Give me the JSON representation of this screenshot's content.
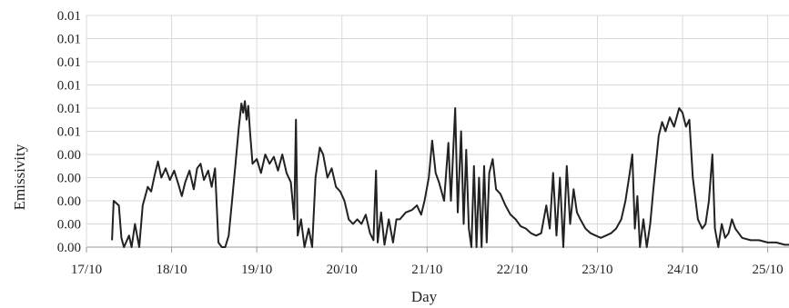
{
  "chart_data": {
    "type": "line",
    "title": "",
    "xlabel": "Day",
    "ylabel": "Emissivity",
    "x_tick_labels": [
      "17/10",
      "18/10",
      "19/10",
      "20/10",
      "21/10",
      "22/10",
      "23/10",
      "24/10",
      "25/10"
    ],
    "x_tick_values": [
      17,
      18,
      19,
      20,
      21,
      22,
      23,
      24,
      25
    ],
    "xlim": [
      17,
      25.25
    ],
    "y_tick_labels": [
      "0.00",
      "0.00",
      "0.00",
      "0.00",
      "0.00",
      "0.01",
      "0.01",
      "0.01",
      "0.01",
      "0.01",
      "0.01"
    ],
    "y_tick_values": [
      0,
      0.001,
      0.002,
      0.003,
      0.004,
      0.005,
      0.006,
      0.007,
      0.008,
      0.009,
      0.01
    ],
    "ylim": [
      0,
      0.01
    ],
    "grid": true,
    "legend": "none",
    "colors": {
      "line": "#222222",
      "grid": "#d9d9d9",
      "axis": "#9a9a9a"
    },
    "series": [
      {
        "values": [
          [
            17.3,
            0.0003
          ],
          [
            17.32,
            0.002
          ],
          [
            17.38,
            0.0018
          ],
          [
            17.41,
            0.0004
          ],
          [
            17.44,
            0.0
          ],
          [
            17.5,
            0.0005
          ],
          [
            17.53,
            0.0
          ],
          [
            17.57,
            0.001
          ],
          [
            17.62,
            0.0
          ],
          [
            17.66,
            0.0018
          ],
          [
            17.72,
            0.0026
          ],
          [
            17.76,
            0.0024
          ],
          [
            17.8,
            0.0031
          ],
          [
            17.84,
            0.0037
          ],
          [
            17.88,
            0.003
          ],
          [
            17.93,
            0.0034
          ],
          [
            17.98,
            0.0029
          ],
          [
            18.03,
            0.0033
          ],
          [
            18.08,
            0.0027
          ],
          [
            18.12,
            0.0022
          ],
          [
            18.16,
            0.0028
          ],
          [
            18.21,
            0.0033
          ],
          [
            18.26,
            0.0025
          ],
          [
            18.3,
            0.0034
          ],
          [
            18.34,
            0.0036
          ],
          [
            18.38,
            0.0029
          ],
          [
            18.43,
            0.0033
          ],
          [
            18.47,
            0.0026
          ],
          [
            18.51,
            0.0034
          ],
          [
            18.55,
            0.0002
          ],
          [
            18.59,
            0.0
          ],
          [
            18.63,
            0.0
          ],
          [
            18.67,
            0.0005
          ],
          [
            18.71,
            0.002
          ],
          [
            18.75,
            0.0036
          ],
          [
            18.79,
            0.0052
          ],
          [
            18.82,
            0.0062
          ],
          [
            18.84,
            0.0058
          ],
          [
            18.86,
            0.0063
          ],
          [
            18.88,
            0.0055
          ],
          [
            18.9,
            0.0061
          ],
          [
            18.92,
            0.005
          ],
          [
            18.95,
            0.0036
          ],
          [
            19.0,
            0.0038
          ],
          [
            19.05,
            0.0032
          ],
          [
            19.1,
            0.004
          ],
          [
            19.15,
            0.0036
          ],
          [
            19.2,
            0.0039
          ],
          [
            19.25,
            0.0033
          ],
          [
            19.3,
            0.004
          ],
          [
            19.35,
            0.0032
          ],
          [
            19.4,
            0.0028
          ],
          [
            19.44,
            0.0012
          ],
          [
            19.46,
            0.0055
          ],
          [
            19.48,
            0.0005
          ],
          [
            19.52,
            0.0012
          ],
          [
            19.56,
            0.0
          ],
          [
            19.61,
            0.0008
          ],
          [
            19.65,
            0.0
          ],
          [
            19.69,
            0.003
          ],
          [
            19.74,
            0.0043
          ],
          [
            19.78,
            0.004
          ],
          [
            19.83,
            0.003
          ],
          [
            19.88,
            0.0034
          ],
          [
            19.93,
            0.0026
          ],
          [
            19.98,
            0.0024
          ],
          [
            20.03,
            0.002
          ],
          [
            20.08,
            0.0012
          ],
          [
            20.13,
            0.001
          ],
          [
            20.18,
            0.0012
          ],
          [
            20.23,
            0.001
          ],
          [
            20.28,
            0.0014
          ],
          [
            20.33,
            0.0006
          ],
          [
            20.37,
            0.0003
          ],
          [
            20.4,
            0.0033
          ],
          [
            20.42,
            0.0002
          ],
          [
            20.46,
            0.0015
          ],
          [
            20.5,
            0.0001
          ],
          [
            20.55,
            0.0012
          ],
          [
            20.6,
            0.0002
          ],
          [
            20.64,
            0.0012
          ],
          [
            20.68,
            0.0012
          ],
          [
            20.75,
            0.0015
          ],
          [
            20.82,
            0.0016
          ],
          [
            20.88,
            0.0018
          ],
          [
            20.93,
            0.0014
          ],
          [
            20.97,
            0.002
          ],
          [
            21.02,
            0.003
          ],
          [
            21.06,
            0.0046
          ],
          [
            21.1,
            0.0032
          ],
          [
            21.14,
            0.0028
          ],
          [
            21.2,
            0.002
          ],
          [
            21.25,
            0.0045
          ],
          [
            21.28,
            0.002
          ],
          [
            21.33,
            0.006
          ],
          [
            21.36,
            0.0015
          ],
          [
            21.4,
            0.005
          ],
          [
            21.43,
            0.001
          ],
          [
            21.46,
            0.0042
          ],
          [
            21.49,
            0.0008
          ],
          [
            21.52,
            0.0
          ],
          [
            21.55,
            0.0035
          ],
          [
            21.58,
            0.0
          ],
          [
            21.61,
            0.003
          ],
          [
            21.64,
            0.0
          ],
          [
            21.67,
            0.0035
          ],
          [
            21.7,
            0.0002
          ],
          [
            21.73,
            0.0032
          ],
          [
            21.77,
            0.0038
          ],
          [
            21.81,
            0.0025
          ],
          [
            21.86,
            0.0023
          ],
          [
            21.92,
            0.0018
          ],
          [
            21.98,
            0.0014
          ],
          [
            22.04,
            0.0012
          ],
          [
            22.1,
            0.0009
          ],
          [
            22.16,
            0.0008
          ],
          [
            22.22,
            0.0006
          ],
          [
            22.28,
            0.0005
          ],
          [
            22.34,
            0.0006
          ],
          [
            22.4,
            0.0018
          ],
          [
            22.44,
            0.0008
          ],
          [
            22.48,
            0.0032
          ],
          [
            22.52,
            0.0005
          ],
          [
            22.56,
            0.003
          ],
          [
            22.6,
            0.0
          ],
          [
            22.64,
            0.0035
          ],
          [
            22.68,
            0.001
          ],
          [
            22.72,
            0.0025
          ],
          [
            22.76,
            0.0015
          ],
          [
            22.8,
            0.0012
          ],
          [
            22.86,
            0.0008
          ],
          [
            22.92,
            0.0006
          ],
          [
            22.98,
            0.0005
          ],
          [
            23.04,
            0.0004
          ],
          [
            23.1,
            0.0005
          ],
          [
            23.16,
            0.0006
          ],
          [
            23.22,
            0.0008
          ],
          [
            23.28,
            0.0012
          ],
          [
            23.33,
            0.002
          ],
          [
            23.38,
            0.0032
          ],
          [
            23.41,
            0.004
          ],
          [
            23.44,
            0.0008
          ],
          [
            23.47,
            0.0022
          ],
          [
            23.5,
            0.0
          ],
          [
            23.54,
            0.0012
          ],
          [
            23.58,
            0.0
          ],
          [
            23.62,
            0.001
          ],
          [
            23.66,
            0.0026
          ],
          [
            23.72,
            0.0048
          ],
          [
            23.76,
            0.0054
          ],
          [
            23.8,
            0.005
          ],
          [
            23.85,
            0.0056
          ],
          [
            23.9,
            0.0052
          ],
          [
            23.96,
            0.006
          ],
          [
            24.0,
            0.0058
          ],
          [
            24.04,
            0.0052
          ],
          [
            24.08,
            0.0055
          ],
          [
            24.12,
            0.003
          ],
          [
            24.18,
            0.0012
          ],
          [
            24.23,
            0.0008
          ],
          [
            24.27,
            0.001
          ],
          [
            24.31,
            0.002
          ],
          [
            24.35,
            0.004
          ],
          [
            24.38,
            0.0008
          ],
          [
            24.42,
            0.0
          ],
          [
            24.46,
            0.001
          ],
          [
            24.5,
            0.0004
          ],
          [
            24.54,
            0.0006
          ],
          [
            24.58,
            0.0012
          ],
          [
            24.62,
            0.0008
          ],
          [
            24.7,
            0.0004
          ],
          [
            24.8,
            0.0003
          ],
          [
            24.9,
            0.0003
          ],
          [
            25.0,
            0.0002
          ],
          [
            25.1,
            0.0002
          ],
          [
            25.2,
            0.0001
          ],
          [
            25.25,
            0.0001
          ]
        ]
      }
    ]
  }
}
